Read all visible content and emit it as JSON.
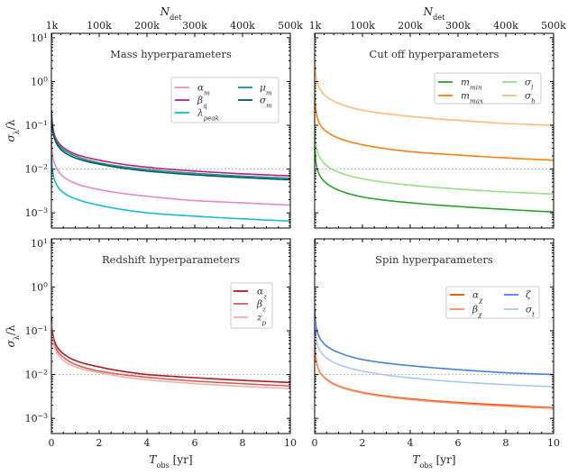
{
  "figure": {
    "top_xlabel": {
      "main": "N",
      "sub": "det"
    },
    "bottom_xlabel": {
      "main": "T",
      "sub": "obs",
      "rest": " [yr]"
    },
    "ylabel": {
      "main": "σ",
      "sub": "λ",
      "rest": "/λ"
    },
    "threshold": 0.01,
    "threshold_color": "#b0b0b0",
    "y_scale": "log",
    "ylim": [
      0.00045,
      12.6
    ],
    "xlim": [
      0,
      10
    ],
    "y_ticks": [
      {
        "value": 10,
        "base": "10",
        "exp": "1"
      },
      {
        "value": 1,
        "base": "10",
        "exp": "0"
      },
      {
        "value": 0.1,
        "base": "10",
        "exp": "−1"
      },
      {
        "value": 0.01,
        "base": "10",
        "exp": "−2"
      },
      {
        "value": 0.001,
        "base": "10",
        "exp": "−3"
      }
    ],
    "x_ticks": [
      {
        "value": 0,
        "label": "0"
      },
      {
        "value": 2,
        "label": "2"
      },
      {
        "value": 4,
        "label": "4"
      },
      {
        "value": 6,
        "label": "6"
      },
      {
        "value": 8,
        "label": "8"
      },
      {
        "value": 10,
        "label": "10"
      }
    ],
    "top_ticks": [
      {
        "value": 0.02,
        "label": "1k"
      },
      {
        "value": 2,
        "label": "100k"
      },
      {
        "value": 4,
        "label": "200k"
      },
      {
        "value": 6,
        "label": "300k"
      },
      {
        "value": 8,
        "label": "400k"
      },
      {
        "value": 10,
        "label": "500k"
      }
    ]
  },
  "chart_data": [
    {
      "type": "line",
      "title": "Mass hyperparameters",
      "x": [
        0.01,
        0.05,
        0.2,
        0.5,
        1,
        2,
        4,
        6,
        8,
        10
      ],
      "series": [
        {
          "name": {
            "main": "α",
            "sub": "m"
          },
          "color": "#e78ac3",
          "values": [
            0.047,
            0.021,
            0.011,
            0.0067,
            0.0047,
            0.0034,
            0.0024,
            0.0019,
            0.0017,
            0.0015
          ]
        },
        {
          "name": {
            "main": "β",
            "sub": "q"
          },
          "color": "#c51b7d",
          "values": [
            0.22,
            0.099,
            0.049,
            0.031,
            0.022,
            0.016,
            0.011,
            0.009,
            0.0078,
            0.007
          ]
        },
        {
          "name": {
            "main": "λ",
            "sub": "peak"
          },
          "color": "#17becf",
          "values": [
            0.021,
            0.0092,
            0.0046,
            0.0029,
            0.0021,
            0.0015,
            0.001,
            0.00084,
            0.00073,
            0.00065
          ]
        },
        {
          "name": {
            "main": "μ",
            "sub": "m"
          },
          "color": "#1a9696",
          "values": [
            0.196,
            0.088,
            0.044,
            0.028,
            0.02,
            0.0139,
            0.0098,
            0.008,
            0.0069,
            0.0062
          ]
        },
        {
          "name": {
            "main": "σ",
            "sub": "m"
          },
          "color": "#00585a",
          "values": [
            0.18,
            0.081,
            0.04,
            0.025,
            0.018,
            0.013,
            0.009,
            0.0074,
            0.0064,
            0.0057
          ]
        }
      ]
    },
    {
      "type": "line",
      "title": "Cut off hyperparameters",
      "x": [
        0.01,
        0.05,
        0.2,
        0.5,
        1,
        2,
        4,
        6,
        8,
        10
      ],
      "series": [
        {
          "name": {
            "main": "m",
            "sub": "min"
          },
          "color": "#2ca02c",
          "values": [
            0.033,
            0.015,
            0.0074,
            0.0047,
            0.0033,
            0.0023,
            0.0017,
            0.0014,
            0.0012,
            0.00105
          ]
        },
        {
          "name": {
            "main": "m",
            "sub": "max"
          },
          "color": "#ff7f0e",
          "values": [
            0.51,
            0.23,
            0.11,
            0.072,
            0.051,
            0.036,
            0.025,
            0.021,
            0.018,
            0.016
          ]
        },
        {
          "name": {
            "main": "σ",
            "sub": "l"
          },
          "color": "#98df8a",
          "values": [
            0.085,
            0.038,
            0.019,
            0.012,
            0.0085,
            0.006,
            0.0043,
            0.0035,
            0.003,
            0.0027
          ]
        },
        {
          "name": {
            "main": "σ",
            "sub": "h"
          },
          "color": "#ffbb78",
          "values": [
            3.16,
            1.41,
            0.71,
            0.45,
            0.32,
            0.22,
            0.16,
            0.13,
            0.11,
            0.1
          ]
        }
      ]
    },
    {
      "type": "line",
      "title": "Redshift hyperparameters",
      "x": [
        0.01,
        0.05,
        0.2,
        0.5,
        1,
        2,
        4,
        6,
        8,
        10
      ],
      "series": [
        {
          "name": {
            "main": "α",
            "sub": "z"
          },
          "color": "#b2182b",
          "values": [
            0.21,
            0.093,
            0.047,
            0.03,
            0.021,
            0.015,
            0.01,
            0.0085,
            0.0074,
            0.0066
          ]
        },
        {
          "name": {
            "main": "β",
            "sub": "z"
          },
          "color": "#d6604d",
          "values": [
            0.17,
            0.078,
            0.039,
            0.025,
            0.017,
            0.012,
            0.0087,
            0.0071,
            0.0062,
            0.0055
          ]
        },
        {
          "name": {
            "main": "z",
            "sub": "p"
          },
          "color": "#f0b0b0",
          "values": [
            0.15,
            0.068,
            0.034,
            0.021,
            0.015,
            0.011,
            0.0076,
            0.0062,
            0.0054,
            0.0048
          ]
        }
      ]
    },
    {
      "type": "line",
      "title": "Spin hyperparameters",
      "x": [
        0.01,
        0.05,
        0.2,
        0.5,
        1,
        2,
        4,
        6,
        8,
        10
      ],
      "series": [
        {
          "name": {
            "main": "α",
            "sub": "χ"
          },
          "color": "#ff4500",
          "values": [
            0.055,
            0.025,
            0.012,
            0.0078,
            0.0055,
            0.0039,
            0.0028,
            0.0023,
            0.002,
            0.00175
          ]
        },
        {
          "name": {
            "main": "β",
            "sub": "χ"
          },
          "color": "#fc8d62",
          "values": [
            0.054,
            0.024,
            0.012,
            0.0076,
            0.0054,
            0.0038,
            0.0027,
            0.0022,
            0.0019,
            0.0017
          ]
        },
        {
          "name": {
            "main": "ζ",
            "sub": ""
          },
          "color": "#4a7fe0",
          "values": [
            0.32,
            0.14,
            0.071,
            0.045,
            0.032,
            0.022,
            0.016,
            0.013,
            0.011,
            0.01
          ]
        },
        {
          "name": {
            "main": "σ",
            "sub": "t"
          },
          "color": "#aec7ef",
          "values": [
            0.17,
            0.075,
            0.037,
            0.024,
            0.017,
            0.012,
            0.0084,
            0.0068,
            0.0059,
            0.0053
          ]
        }
      ]
    }
  ]
}
